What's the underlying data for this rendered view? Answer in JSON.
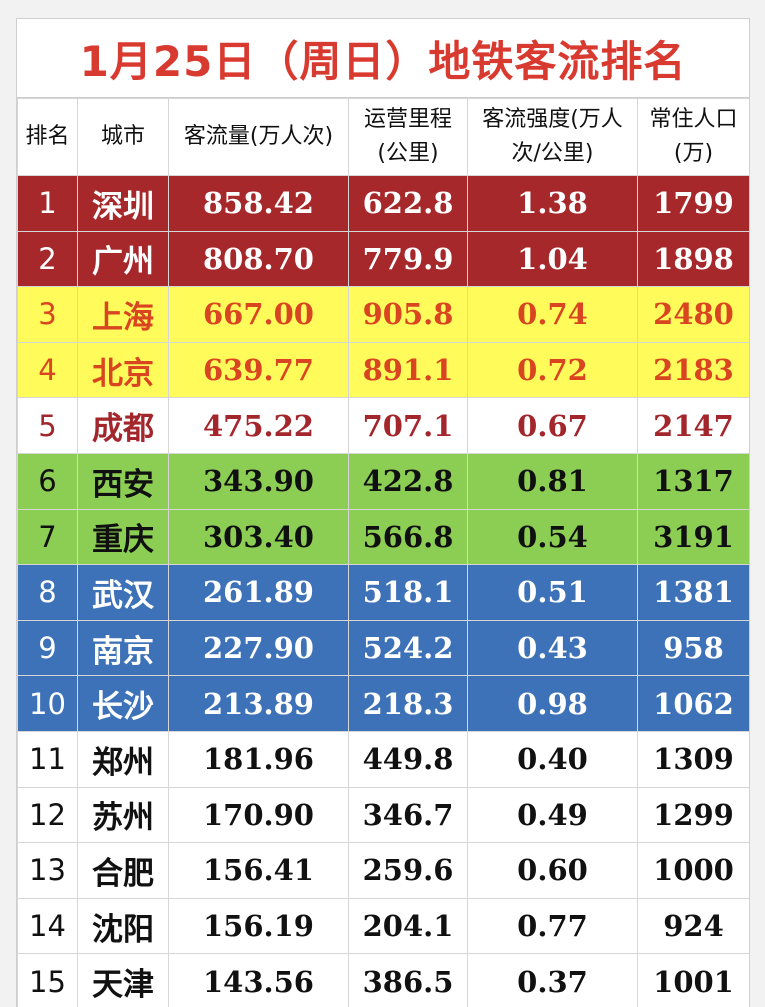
{
  "title": "1月25日（周日）地铁客流排名",
  "headers": [
    "排名",
    "城市",
    "客流量(万人次)",
    "运营里程\n(公里)",
    "客流强度(万人\n次/公里)",
    "常住人口\n(万)"
  ],
  "rows": [
    {
      "rank": "1",
      "city": "深圳",
      "flow": "858.42",
      "mileage": "622.8",
      "intensity": "1.38",
      "population": "1799",
      "style": "red"
    },
    {
      "rank": "2",
      "city": "广州",
      "flow": "808.70",
      "mileage": "779.9",
      "intensity": "1.04",
      "population": "1898",
      "style": "red"
    },
    {
      "rank": "3",
      "city": "上海",
      "flow": "667.00",
      "mileage": "905.8",
      "intensity": "0.74",
      "population": "2480",
      "style": "yellow"
    },
    {
      "rank": "4",
      "city": "北京",
      "flow": "639.77",
      "mileage": "891.1",
      "intensity": "0.72",
      "population": "2183",
      "style": "yellow"
    },
    {
      "rank": "5",
      "city": "成都",
      "flow": "475.22",
      "mileage": "707.1",
      "intensity": "0.67",
      "population": "2147",
      "style": "white-red"
    },
    {
      "rank": "6",
      "city": "西安",
      "flow": "343.90",
      "mileage": "422.8",
      "intensity": "0.81",
      "population": "1317",
      "style": "green"
    },
    {
      "rank": "7",
      "city": "重庆",
      "flow": "303.40",
      "mileage": "566.8",
      "intensity": "0.54",
      "population": "3191",
      "style": "green"
    },
    {
      "rank": "8",
      "city": "武汉",
      "flow": "261.89",
      "mileage": "518.1",
      "intensity": "0.51",
      "population": "1381",
      "style": "blue"
    },
    {
      "rank": "9",
      "city": "南京",
      "flow": "227.90",
      "mileage": "524.2",
      "intensity": "0.43",
      "population": "958",
      "style": "blue"
    },
    {
      "rank": "10",
      "city": "长沙",
      "flow": "213.89",
      "mileage": "218.3",
      "intensity": "0.98",
      "population": "1062",
      "style": "blue"
    },
    {
      "rank": "11",
      "city": "郑州",
      "flow": "181.96",
      "mileage": "449.8",
      "intensity": "0.40",
      "population": "1309",
      "style": "plain"
    },
    {
      "rank": "12",
      "city": "苏州",
      "flow": "170.90",
      "mileage": "346.7",
      "intensity": "0.49",
      "population": "1299",
      "style": "plain"
    },
    {
      "rank": "13",
      "city": "合肥",
      "flow": "156.41",
      "mileage": "259.6",
      "intensity": "0.60",
      "population": "1000",
      "style": "plain"
    },
    {
      "rank": "14",
      "city": "沈阳",
      "flow": "156.19",
      "mileage": "204.1",
      "intensity": "0.77",
      "population": "924",
      "style": "plain"
    },
    {
      "rank": "15",
      "city": "天津",
      "flow": "143.56",
      "mileage": "386.5",
      "intensity": "0.37",
      "population": "1001",
      "style": "plain"
    }
  ],
  "colors": {
    "title": "#d93a30",
    "red_band": "#a7282b",
    "yellow_band": "#fffb5a",
    "yellow_text": "#d84520",
    "green_band": "#8ccd54",
    "blue_band": "#3d72b8"
  }
}
